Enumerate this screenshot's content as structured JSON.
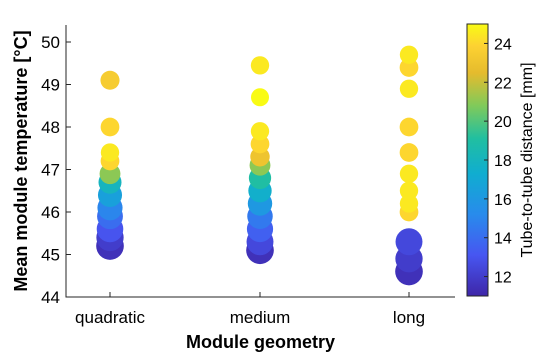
{
  "chart_data": {
    "type": "scatter",
    "xlabel": "Module geometry",
    "ylabel": "Mean module temperature [°C]",
    "categories": [
      "quadratic",
      "medium",
      "long"
    ],
    "ylim": [
      44,
      50.4
    ],
    "yticks": [
      44,
      45,
      46,
      47,
      48,
      49,
      50
    ],
    "grid": false,
    "colorbar": {
      "label": "Tube-to-tube distance [mm]",
      "range": [
        11,
        25
      ],
      "ticks": [
        12,
        14,
        16,
        18,
        20,
        22,
        24
      ],
      "colormap": "parula"
    },
    "series": [
      {
        "category": "quadratic",
        "points": [
          {
            "y": 45.2,
            "c": 11.5
          },
          {
            "y": 45.4,
            "c": 12.0
          },
          {
            "y": 45.6,
            "c": 13.0
          },
          {
            "y": 45.9,
            "c": 14.0
          },
          {
            "y": 46.1,
            "c": 15.0
          },
          {
            "y": 46.4,
            "c": 16.5
          },
          {
            "y": 46.7,
            "c": 18.0
          },
          {
            "y": 46.9,
            "c": 21.0
          },
          {
            "y": 47.2,
            "c": 24.0
          },
          {
            "y": 47.4,
            "c": 24.5
          },
          {
            "y": 48.0,
            "c": 24.0
          },
          {
            "y": 49.1,
            "c": 23.5
          }
        ]
      },
      {
        "category": "medium",
        "points": [
          {
            "y": 45.1,
            "c": 11.5
          },
          {
            "y": 45.3,
            "c": 12.5
          },
          {
            "y": 45.6,
            "c": 13.5
          },
          {
            "y": 45.9,
            "c": 14.5
          },
          {
            "y": 46.2,
            "c": 16.0
          },
          {
            "y": 46.5,
            "c": 17.5
          },
          {
            "y": 46.8,
            "c": 19.0
          },
          {
            "y": 47.1,
            "c": 21.0
          },
          {
            "y": 47.3,
            "c": 23.0
          },
          {
            "y": 47.6,
            "c": 24.0
          },
          {
            "y": 47.9,
            "c": 24.5
          },
          {
            "y": 48.7,
            "c": 25.0
          },
          {
            "y": 49.45,
            "c": 24.5
          }
        ]
      },
      {
        "category": "long",
        "points": [
          {
            "y": 44.6,
            "c": 11.5
          },
          {
            "y": 44.9,
            "c": 12.0
          },
          {
            "y": 45.3,
            "c": 12.5
          },
          {
            "y": 46.0,
            "c": 24.0
          },
          {
            "y": 46.2,
            "c": 24.5
          },
          {
            "y": 46.5,
            "c": 24.5
          },
          {
            "y": 46.9,
            "c": 24.5
          },
          {
            "y": 47.4,
            "c": 24.0
          },
          {
            "y": 48.0,
            "c": 24.0
          },
          {
            "y": 48.9,
            "c": 24.5
          },
          {
            "y": 49.4,
            "c": 24.0
          },
          {
            "y": 49.7,
            "c": 24.5
          }
        ]
      }
    ]
  }
}
